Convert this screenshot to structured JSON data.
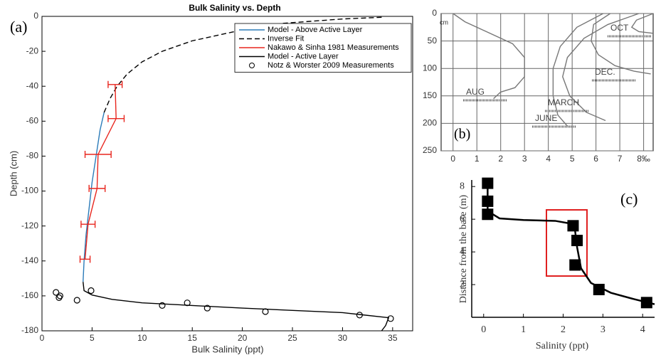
{
  "chart_data": [
    {
      "type": "line",
      "title": "Bulk Salinity  vs. Depth",
      "panel_label": "(a)",
      "xlabel": "Bulk Salinity (ppt)",
      "ylabel": "Depth (cm)",
      "xlim": [
        0,
        37
      ],
      "ylim": [
        -180,
        0
      ],
      "xticks": [
        0,
        5,
        10,
        15,
        20,
        25,
        30,
        35
      ],
      "yticks": [
        -180,
        -160,
        -140,
        -120,
        -100,
        -80,
        -60,
        -40,
        -20,
        0
      ],
      "grid": false,
      "legend": "upper right",
      "series": [
        {
          "name": "Model - Above Active Layer",
          "color": "#2b7bb9",
          "style": "solid",
          "marker": "none",
          "x": [
            4.1,
            4.2,
            4.4,
            4.7,
            5.0,
            5.4,
            5.8,
            6.2
          ],
          "y": [
            -152,
            -140,
            -125,
            -110,
            -95,
            -80,
            -65,
            -55
          ]
        },
        {
          "name": "Inverse Fit",
          "color": "#000000",
          "style": "dashed",
          "marker": "none",
          "x": [
            6.2,
            6.8,
            7.5,
            8.5,
            10,
            12,
            15,
            19,
            24,
            30,
            34
          ],
          "y": [
            -55,
            -47,
            -40,
            -33,
            -26,
            -20,
            -14,
            -9,
            -4,
            -1.5,
            -0.5
          ]
        },
        {
          "name": "Nakawo & Sinha 1981 Measurements",
          "color": "#e8261e",
          "style": "solid",
          "marker": "none",
          "x": [
            7.3,
            7.4,
            5.6,
            5.5,
            4.6,
            4.3
          ],
          "y": [
            -39,
            -58.5,
            -79,
            -98.5,
            -119,
            -139
          ],
          "xerr": [
            0.7,
            0.8,
            1.3,
            0.8,
            0.7,
            0.5
          ]
        },
        {
          "name": "Model - Active Layer",
          "color": "#000000",
          "style": "solid",
          "marker": "none",
          "x": [
            4.1,
            4.2,
            5,
            7,
            10,
            15,
            20,
            25,
            30,
            34.6,
            34.3,
            33.9
          ],
          "y": [
            -152,
            -157,
            -159.5,
            -162,
            -164,
            -165.5,
            -167,
            -168.3,
            -169.6,
            -172.5,
            -177,
            -180
          ]
        },
        {
          "name": "Notz & Worster 2009 Measurements",
          "color": "#000000",
          "style": "none",
          "marker": "circle",
          "x": [
            1.4,
            1.7,
            1.8,
            3.5,
            4.9,
            12,
            14.5,
            16.5,
            22.3,
            31.7,
            34.8
          ],
          "y": [
            -158,
            -161,
            -160,
            -162.5,
            -157,
            -165.5,
            -164,
            -167,
            -169,
            -171,
            -173
          ]
        }
      ]
    },
    {
      "type": "line",
      "panel_label": "(b)",
      "ylabel": "cm",
      "xlim": [
        -0.5,
        8.4
      ],
      "ylim": [
        250,
        0
      ],
      "xticks": [
        0,
        1,
        2,
        3,
        4,
        5,
        6,
        7,
        {
          "value": 8,
          "label": "8‰"
        }
      ],
      "yticks": [
        0,
        50,
        100,
        150,
        200,
        250
      ],
      "grid": true,
      "legend": false,
      "series": [
        {
          "name": "AUG",
          "color": "#777777",
          "style": "solid",
          "marker": "none",
          "x": [
            0,
            0.5,
            1.5,
            2.5,
            3,
            3,
            2.6,
            2,
            1.7
          ],
          "y": [
            0,
            15,
            35,
            55,
            80,
            115,
            135,
            143,
            155
          ]
        },
        {
          "name": "JUNE",
          "color": "#777777",
          "style": "solid",
          "marker": "none",
          "x": [
            6.3,
            5.2,
            4.5,
            4.2,
            4.2,
            4.4,
            4.8
          ],
          "y": [
            0,
            25,
            60,
            100,
            150,
            185,
            205
          ]
        },
        {
          "name": "MARCH",
          "color": "#777777",
          "style": "solid",
          "marker": "none",
          "x": [
            7.8,
            6.5,
            5.5,
            4.8,
            4.6,
            4.9,
            5.6,
            6.4
          ],
          "y": [
            0,
            20,
            45,
            80,
            115,
            150,
            180,
            195
          ]
        },
        {
          "name": "DEC.",
          "color": "#777777",
          "style": "solid",
          "marker": "none",
          "x": [
            6.6,
            5.9,
            5.8,
            6.1,
            6.8,
            7.6,
            8.3
          ],
          "y": [
            0,
            20,
            50,
            75,
            95,
            105,
            110
          ]
        },
        {
          "name": "OCT",
          "color": "#777777",
          "style": "solid",
          "marker": "none",
          "x": [
            8.4,
            7.7,
            7.5,
            7.8,
            8.4
          ],
          "y": [
            0,
            12,
            25,
            33,
            36
          ]
        }
      ]
    },
    {
      "type": "line",
      "panel_label": "(c)",
      "xlabel": "Salinity (ppt)",
      "ylabel": "Distance from the base (m)",
      "xlim": [
        -0.3,
        4.3
      ],
      "ylim": [
        0,
        8.4
      ],
      "xticks": [
        0,
        1,
        2,
        3,
        4
      ],
      "yticks": [
        2,
        4,
        6,
        8
      ],
      "grid": false,
      "legend": false,
      "series": [
        {
          "color": "#000000",
          "style": "solid",
          "marker": "none",
          "x": [
            0.1,
            0.1,
            0.4,
            1,
            1.8,
            2.15,
            2.3,
            2.35,
            2.45,
            2.7,
            3.2,
            3.8,
            4.3
          ],
          "y": [
            8.3,
            6.5,
            6.05,
            5.95,
            5.9,
            5.75,
            5.3,
            4.3,
            3,
            2.1,
            1.5,
            1.1,
            0.8
          ]
        },
        {
          "color": "#000000",
          "style": "none",
          "marker": "square",
          "x": [
            0.1,
            0.1,
            0.1,
            2.25,
            2.35,
            2.3,
            2.9,
            4.1
          ],
          "y": [
            8.2,
            7.1,
            6.3,
            5.6,
            4.7,
            3.2,
            1.7,
            0.9
          ]
        }
      ]
    }
  ]
}
